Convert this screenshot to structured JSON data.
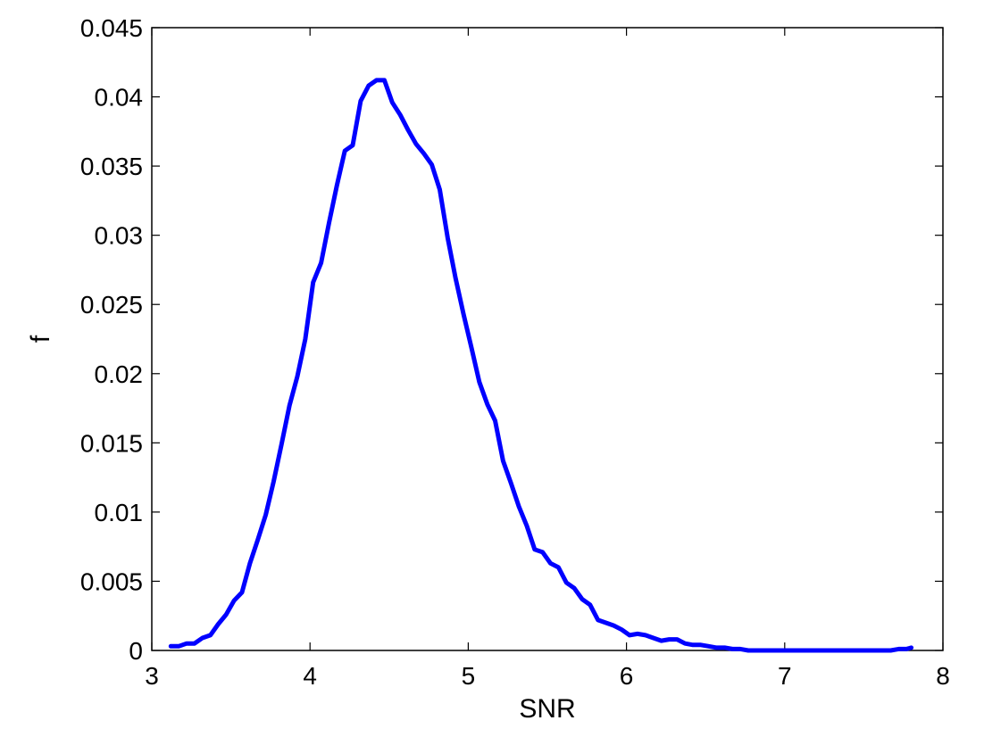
{
  "chart_data": {
    "type": "line",
    "title": "",
    "xlabel": "SNR",
    "ylabel": "f",
    "xlim": [
      3,
      8
    ],
    "ylim": [
      0,
      0.045
    ],
    "grid": false,
    "line_color": "#0000ff",
    "x_ticks": [
      {
        "value": 3,
        "label": "3"
      },
      {
        "value": 4,
        "label": "4"
      },
      {
        "value": 5,
        "label": "5"
      },
      {
        "value": 6,
        "label": "6"
      },
      {
        "value": 7,
        "label": "7"
      },
      {
        "value": 8,
        "label": "8"
      }
    ],
    "y_ticks": [
      {
        "value": 0,
        "label": "0"
      },
      {
        "value": 0.005,
        "label": "0.005"
      },
      {
        "value": 0.01,
        "label": "0.01"
      },
      {
        "value": 0.015,
        "label": "0.015"
      },
      {
        "value": 0.02,
        "label": "0.02"
      },
      {
        "value": 0.025,
        "label": "0.025"
      },
      {
        "value": 0.03,
        "label": "0.03"
      },
      {
        "value": 0.035,
        "label": "0.035"
      },
      {
        "value": 0.04,
        "label": "0.04"
      },
      {
        "value": 0.045,
        "label": "0.045"
      }
    ],
    "series": [
      {
        "x": [
          3.12,
          3.17,
          3.22,
          3.27,
          3.32,
          3.37,
          3.42,
          3.47,
          3.52,
          3.57,
          3.62,
          3.67,
          3.72,
          3.77,
          3.82,
          3.87,
          3.92,
          3.97,
          4.02,
          4.07,
          4.12,
          4.17,
          4.22,
          4.27,
          4.32,
          4.37,
          4.42,
          4.47,
          4.52,
          4.57,
          4.62,
          4.67,
          4.72,
          4.77,
          4.82,
          4.87,
          4.92,
          4.97,
          5.02,
          5.07,
          5.12,
          5.17,
          5.22,
          5.27,
          5.32,
          5.37,
          5.42,
          5.47,
          5.52,
          5.57,
          5.62,
          5.67,
          5.72,
          5.77,
          5.82,
          5.87,
          5.92,
          5.97,
          6.02,
          6.07,
          6.12,
          6.17,
          6.22,
          6.27,
          6.32,
          6.37,
          6.42,
          6.47,
          6.52,
          6.57,
          6.62,
          6.67,
          6.72,
          6.77,
          6.82,
          6.87,
          6.92,
          6.97,
          7.02,
          7.07,
          7.12,
          7.17,
          7.22,
          7.27,
          7.32,
          7.37,
          7.42,
          7.47,
          7.52,
          7.57,
          7.62,
          7.67,
          7.72,
          7.77,
          7.8
        ],
        "y": [
          0.0003,
          0.0003,
          0.0005,
          0.0005,
          0.0009,
          0.0011,
          0.0019,
          0.0026,
          0.0036,
          0.0042,
          0.0063,
          0.008,
          0.0098,
          0.0122,
          0.0149,
          0.0177,
          0.0198,
          0.0225,
          0.0266,
          0.028,
          0.0309,
          0.0336,
          0.0361,
          0.0365,
          0.0397,
          0.0408,
          0.0412,
          0.0412,
          0.0396,
          0.0387,
          0.0376,
          0.0366,
          0.0359,
          0.0351,
          0.0333,
          0.0298,
          0.0269,
          0.0243,
          0.0219,
          0.0194,
          0.0178,
          0.0166,
          0.0137,
          0.0121,
          0.0104,
          0.009,
          0.0073,
          0.0071,
          0.0063,
          0.006,
          0.0049,
          0.0045,
          0.0037,
          0.0033,
          0.0022,
          0.002,
          0.0018,
          0.0015,
          0.0011,
          0.0012,
          0.0011,
          0.0009,
          0.0007,
          0.0008,
          0.0008,
          0.0005,
          0.0004,
          0.0004,
          0.0003,
          0.0002,
          0.0002,
          0.0001,
          0.0001,
          0.0,
          0.0,
          0.0,
          0.0,
          0.0,
          0.0,
          0.0,
          0.0,
          0.0,
          0.0,
          0.0,
          0.0,
          0.0,
          0.0,
          0.0,
          0.0,
          0.0,
          0.0,
          0.0,
          0.0001,
          0.0001,
          0.0002
        ]
      }
    ]
  }
}
